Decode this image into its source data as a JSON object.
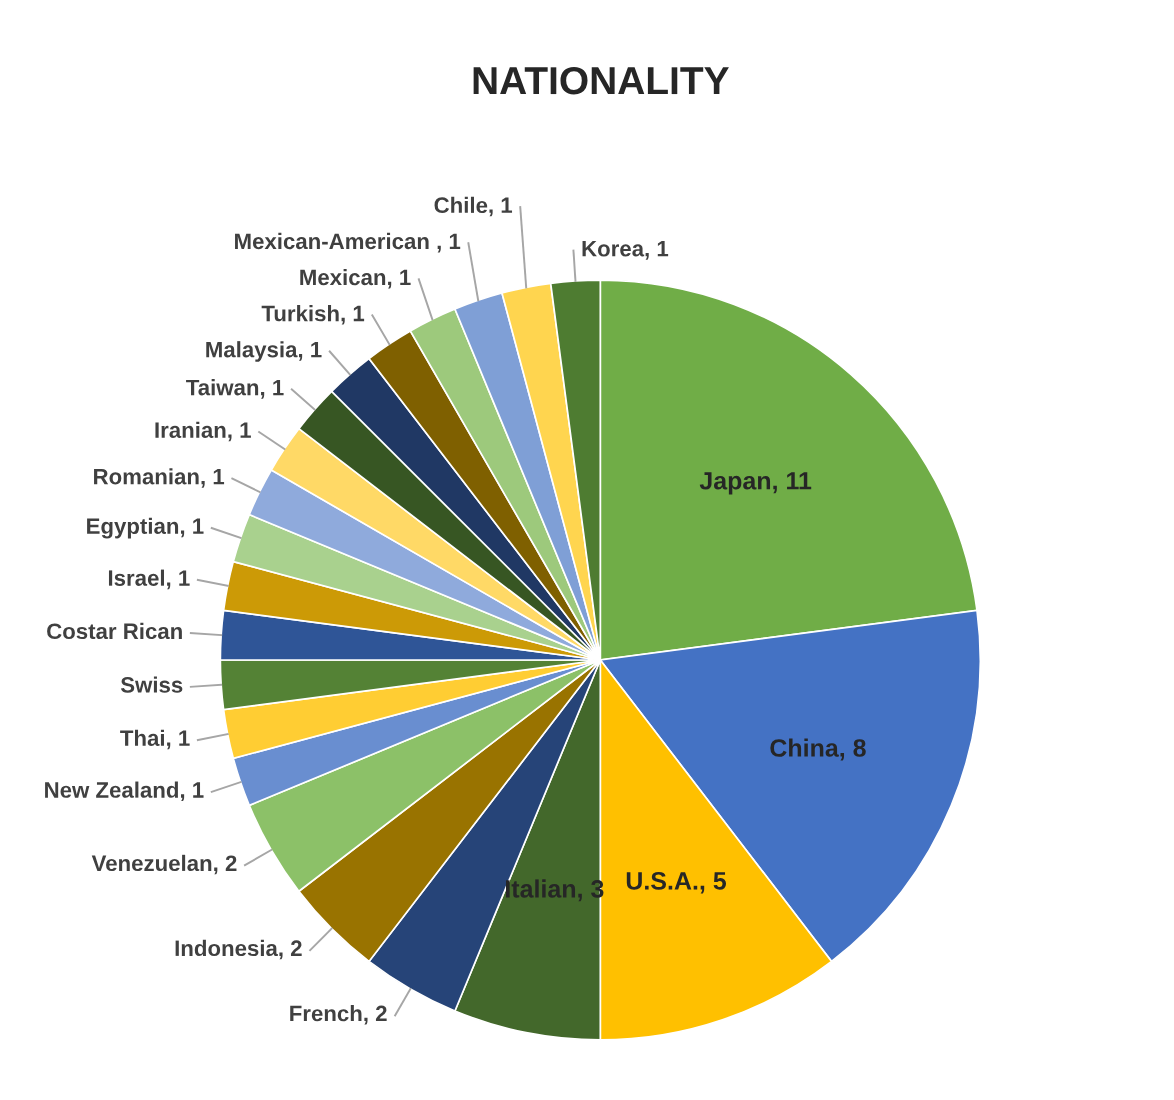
{
  "chart_data": {
    "type": "pie",
    "title": "NATIONALITY",
    "categories": [
      "Japan, 11",
      "China, 8",
      "U.S.A., 5",
      "Italian, 3",
      "French, 2",
      "Indonesia, 2",
      "Venezuelan, 2",
      "New Zealand, 1",
      "Thai, 1",
      "Swiss",
      "Costar Rican",
      "Israel, 1",
      "Egyptian, 1",
      "Romanian, 1",
      "Iranian, 1",
      "Taiwan, 1",
      "Malaysia, 1",
      "Turkish, 1",
      "Mexican, 1",
      "Mexican-American , 1",
      "Chile, 1",
      "Korea, 1"
    ],
    "values": [
      11,
      8,
      5,
      3,
      2,
      2,
      2,
      1,
      1,
      1,
      1,
      1,
      1,
      1,
      1,
      1,
      1,
      1,
      1,
      1,
      1,
      1
    ],
    "colors": [
      "#70ad47",
      "#4472c4",
      "#ffc000",
      "#43682b",
      "#264478",
      "#997300",
      "#8cc168",
      "#698ed0",
      "#ffcd33",
      "#548235",
      "#2f5597",
      "#cc9a06",
      "#a9d18e",
      "#8faadc",
      "#ffd966",
      "#375623",
      "#203864",
      "#7f6000",
      "#9dc97c",
      "#7f9fd6",
      "#ffd54f",
      "#4e7c31"
    ]
  }
}
